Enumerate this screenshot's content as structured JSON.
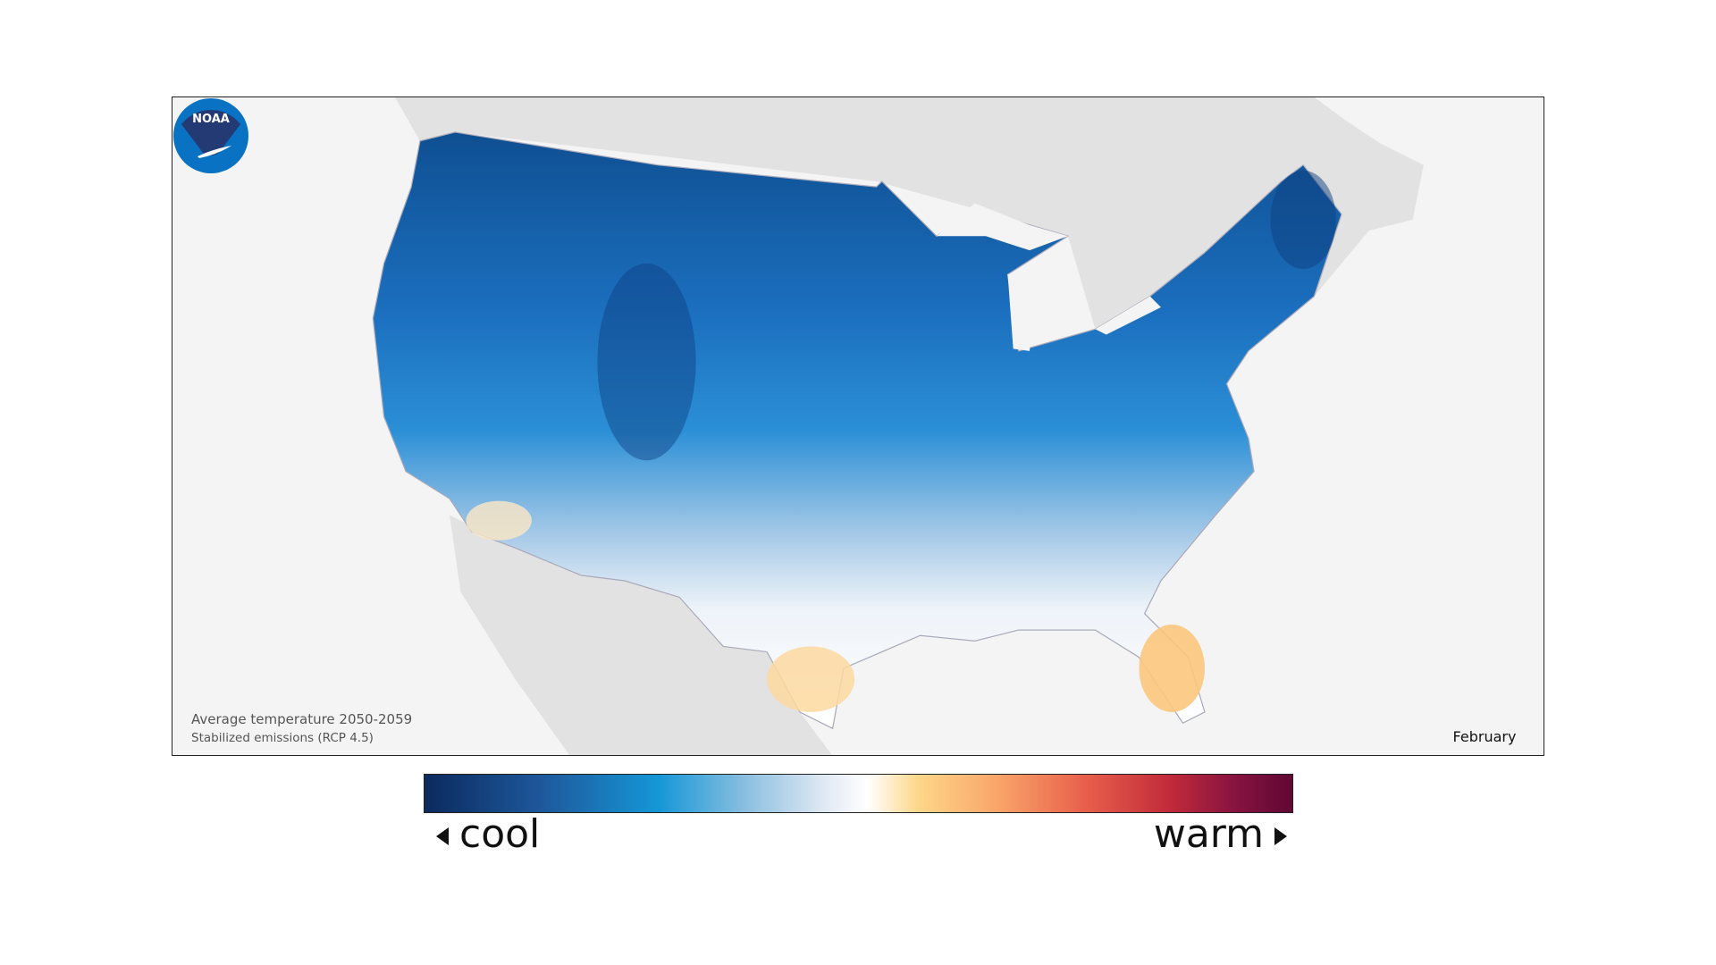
{
  "map": {
    "caption_line1": "Average temperature 2050-2059",
    "caption_line2": "Stabilized emissions (RCP 4.5)",
    "month": "February",
    "logo_text": "NOAA"
  },
  "legend": {
    "cool_label": "cool",
    "warm_label": "warm",
    "colors": [
      "#0b2a5e",
      "#1e5a9e",
      "#1597d6",
      "#8bbfe0",
      "#dfe8f3",
      "#ffffff",
      "#fed688",
      "#f9a56a",
      "#e9604b",
      "#c12a3a",
      "#8a1440",
      "#600733"
    ]
  }
}
